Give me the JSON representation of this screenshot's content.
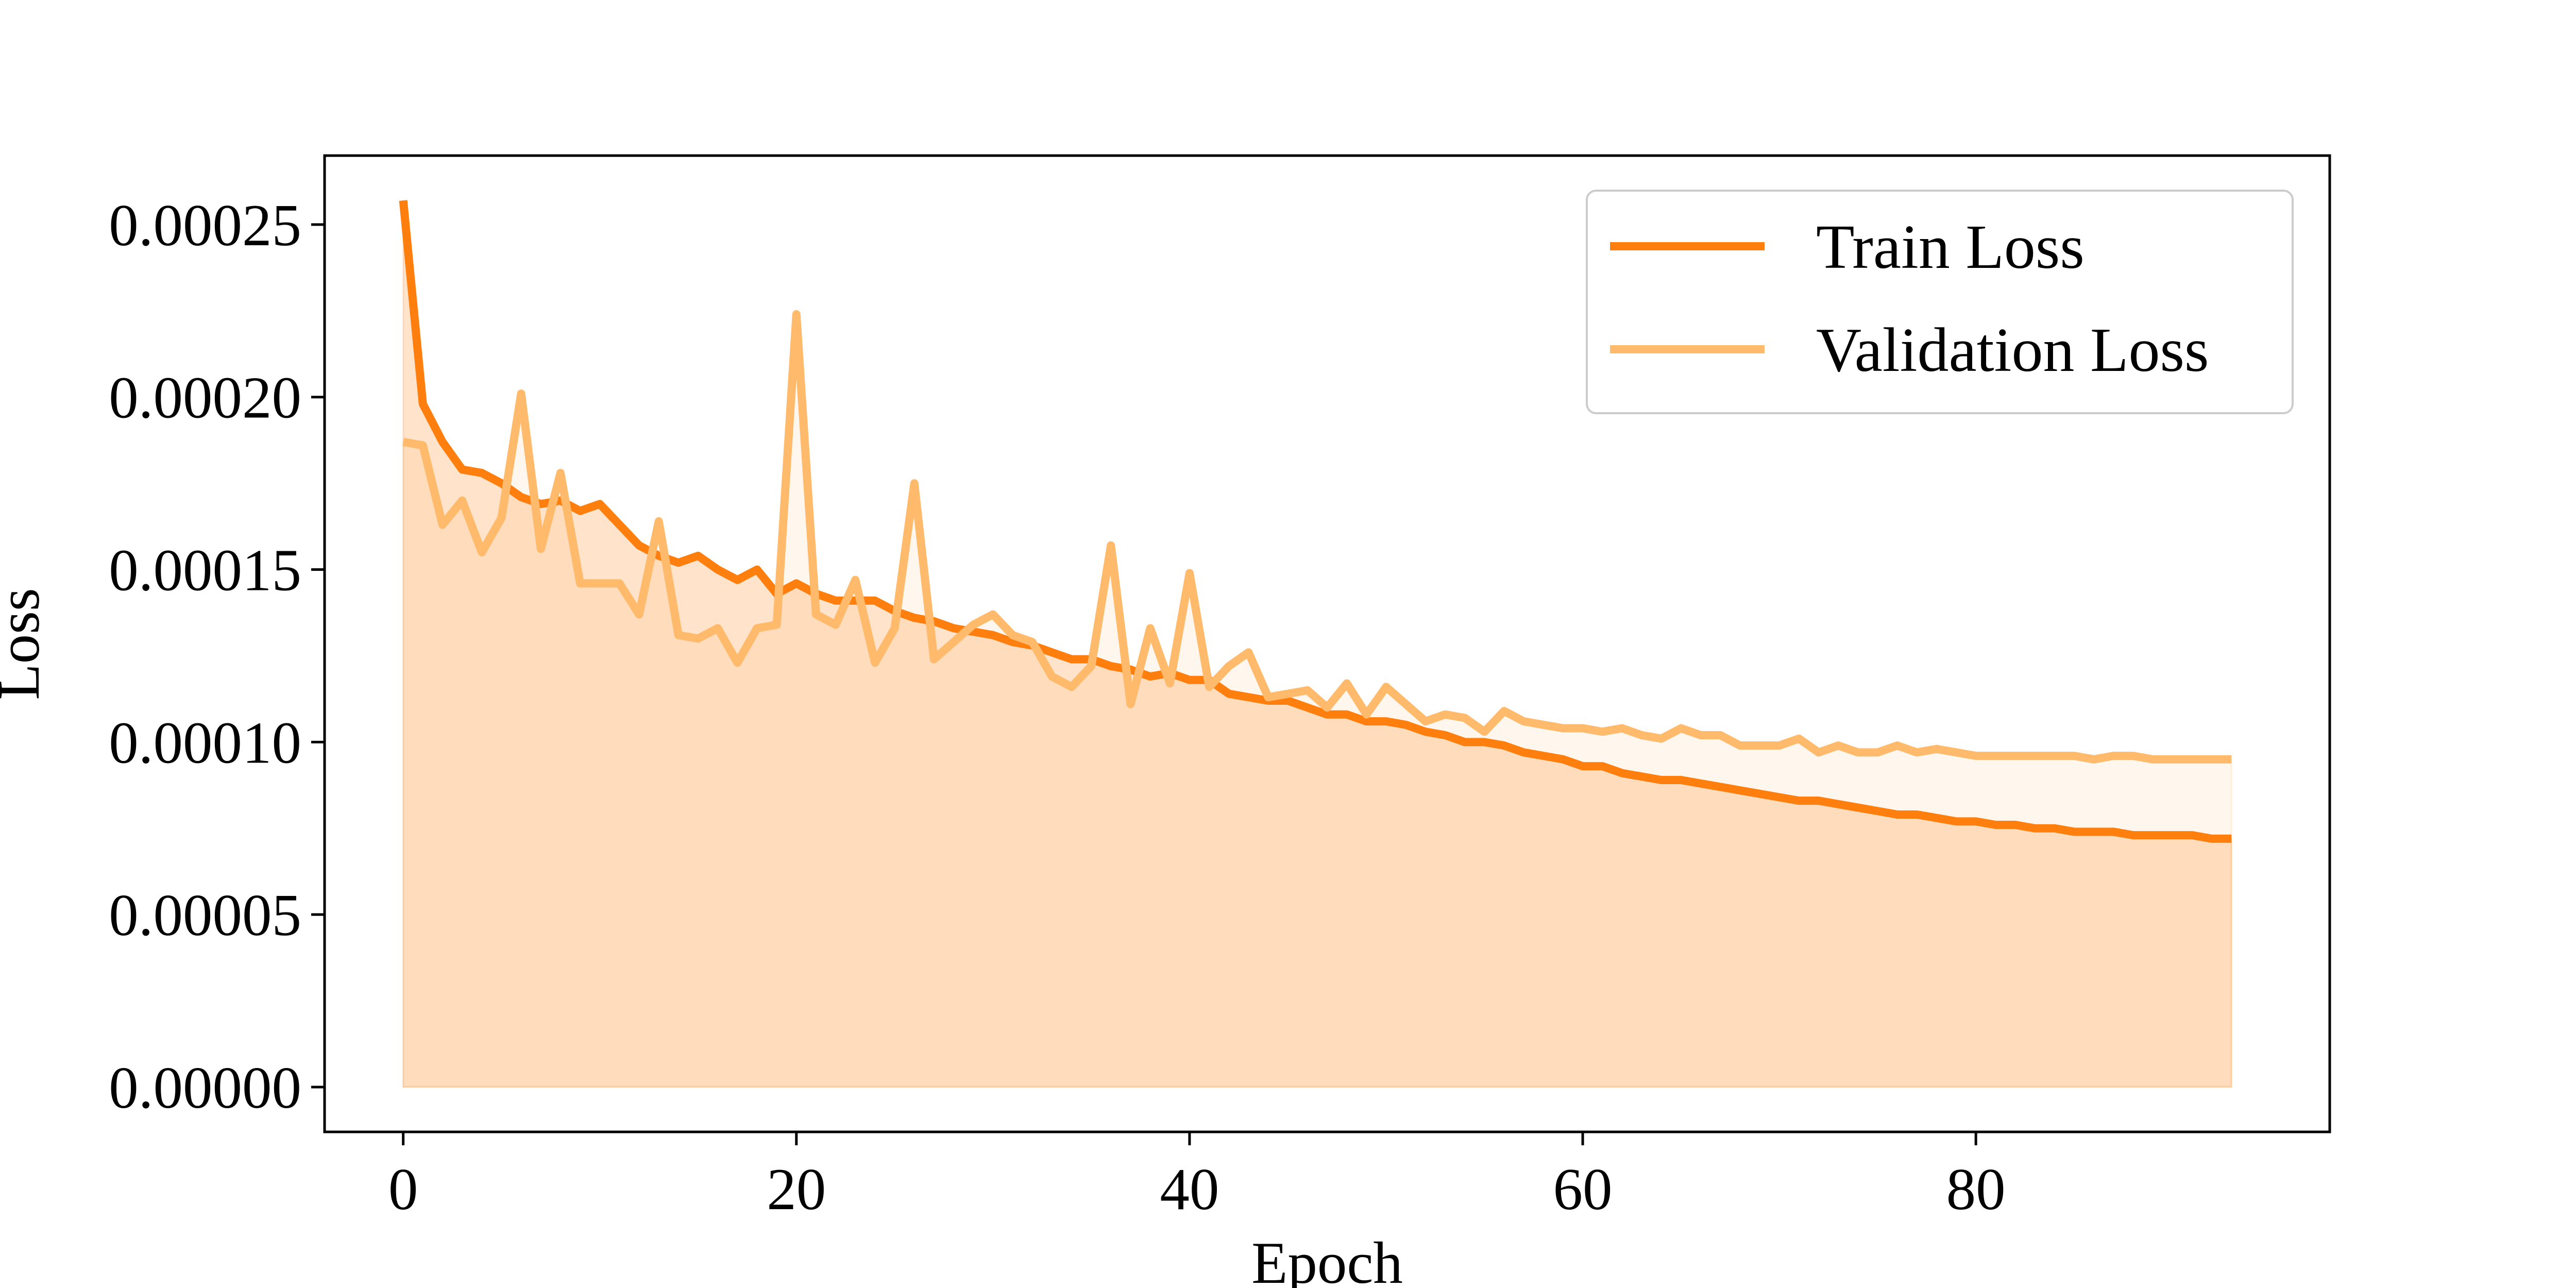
{
  "chart_data": {
    "type": "line",
    "title": "",
    "xlabel": "Epoch",
    "ylabel": "Loss",
    "xlim": [
      -4,
      98
    ],
    "ylim": [
      -1.3e-05,
      0.00027
    ],
    "xticks": [
      0,
      20,
      40,
      60,
      80
    ],
    "xtick_labels": [
      "0",
      "20",
      "40",
      "60",
      "80"
    ],
    "yticks": [
      0,
      5e-05,
      0.0001,
      0.00015,
      0.0002,
      0.00025
    ],
    "ytick_labels": [
      "0.00000",
      "0.00005",
      "0.00010",
      "0.00015",
      "0.00020",
      "0.00025"
    ],
    "grid": false,
    "legend_position": "upper right",
    "colors": {
      "train": "#ff7f0e",
      "validation": "#ffbb6b",
      "fill": "#fdebd8"
    },
    "x": [
      0,
      1,
      2,
      3,
      4,
      5,
      6,
      7,
      8,
      9,
      10,
      11,
      12,
      13,
      14,
      15,
      16,
      17,
      18,
      19,
      20,
      21,
      22,
      23,
      24,
      25,
      26,
      27,
      28,
      29,
      30,
      31,
      32,
      33,
      34,
      35,
      36,
      37,
      38,
      39,
      40,
      41,
      42,
      43,
      44,
      45,
      46,
      47,
      48,
      49,
      50,
      51,
      52,
      53,
      54,
      55,
      56,
      57,
      58,
      59,
      60,
      61,
      62,
      63,
      64,
      65,
      66,
      67,
      68,
      69,
      70,
      71,
      72,
      73,
      74,
      75,
      76,
      77,
      78,
      79,
      80,
      81,
      82,
      83,
      84,
      85,
      86,
      87,
      88,
      89,
      90,
      91,
      92,
      93
    ],
    "series": [
      {
        "name": "Train Loss",
        "values": [
          0.000257,
          0.000198,
          0.000187,
          0.000179,
          0.000178,
          0.000175,
          0.000171,
          0.000169,
          0.00017,
          0.000167,
          0.000169,
          0.000163,
          0.000157,
          0.000154,
          0.000152,
          0.000154,
          0.00015,
          0.000147,
          0.00015,
          0.000143,
          0.000146,
          0.000143,
          0.000141,
          0.000141,
          0.000141,
          0.000138,
          0.000136,
          0.000135,
          0.000133,
          0.000132,
          0.000131,
          0.000129,
          0.000128,
          0.000126,
          0.000124,
          0.000124,
          0.000122,
          0.000121,
          0.000119,
          0.00012,
          0.000118,
          0.000118,
          0.000114,
          0.000113,
          0.000112,
          0.000112,
          0.00011,
          0.000108,
          0.000108,
          0.000106,
          0.000106,
          0.000105,
          0.000103,
          0.000102,
          0.0001,
          0.0001,
          9.9e-05,
          9.7e-05,
          9.6e-05,
          9.5e-05,
          9.3e-05,
          9.3e-05,
          9.1e-05,
          9e-05,
          8.9e-05,
          8.9e-05,
          8.8e-05,
          8.7e-05,
          8.6e-05,
          8.5e-05,
          8.4e-05,
          8.3e-05,
          8.3e-05,
          8.2e-05,
          8.1e-05,
          8e-05,
          7.9e-05,
          7.9e-05,
          7.8e-05,
          7.7e-05,
          7.7e-05,
          7.6e-05,
          7.6e-05,
          7.5e-05,
          7.5e-05,
          7.4e-05,
          7.4e-05,
          7.4e-05,
          7.3e-05,
          7.3e-05,
          7.3e-05,
          7.3e-05,
          7.2e-05,
          7.2e-05
        ]
      },
      {
        "name": "Validation Loss",
        "values": [
          0.000187,
          0.000186,
          0.000163,
          0.00017,
          0.000155,
          0.000165,
          0.000201,
          0.000156,
          0.000178,
          0.000146,
          0.000146,
          0.000146,
          0.000137,
          0.000164,
          0.000131,
          0.00013,
          0.000133,
          0.000123,
          0.000133,
          0.000134,
          0.000224,
          0.000137,
          0.000134,
          0.000147,
          0.000123,
          0.000133,
          0.000175,
          0.000124,
          0.000129,
          0.000134,
          0.000137,
          0.000131,
          0.000129,
          0.000119,
          0.000116,
          0.000122,
          0.000157,
          0.000111,
          0.000133,
          0.000117,
          0.000149,
          0.000116,
          0.000122,
          0.000126,
          0.000113,
          0.000114,
          0.000115,
          0.00011,
          0.000117,
          0.000108,
          0.000116,
          0.000111,
          0.000106,
          0.000108,
          0.000107,
          0.000103,
          0.000109,
          0.000106,
          0.000105,
          0.000104,
          0.000104,
          0.000103,
          0.000104,
          0.000102,
          0.000101,
          0.000104,
          0.000102,
          0.000102,
          9.9e-05,
          9.9e-05,
          9.9e-05,
          0.000101,
          9.7e-05,
          9.9e-05,
          9.7e-05,
          9.7e-05,
          9.9e-05,
          9.7e-05,
          9.8e-05,
          9.7e-05,
          9.6e-05,
          9.6e-05,
          9.6e-05,
          9.6e-05,
          9.6e-05,
          9.6e-05,
          9.5e-05,
          9.6e-05,
          9.6e-05,
          9.5e-05,
          9.5e-05,
          9.5e-05,
          9.5e-05,
          9.5e-05
        ]
      }
    ]
  }
}
